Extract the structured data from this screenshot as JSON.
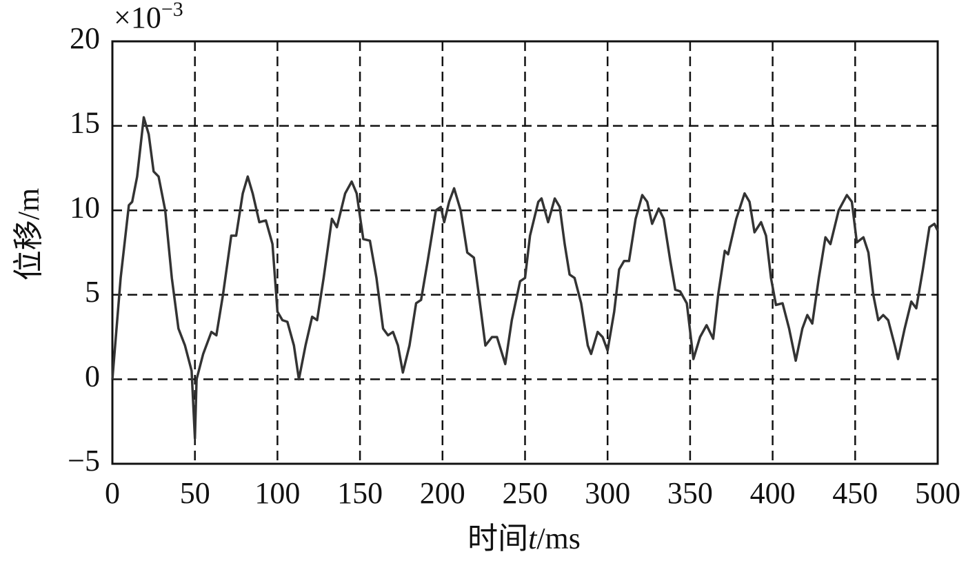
{
  "chart_data": {
    "type": "line",
    "multiplier": {
      "base": "×10",
      "exponent": "−3"
    },
    "xlabel": [
      "时间",
      "t",
      "/ms"
    ],
    "ylabel": "位移/m",
    "xlim": [
      0,
      500
    ],
    "xticks": [
      0,
      50,
      100,
      150,
      200,
      250,
      300,
      350,
      400,
      450,
      500
    ],
    "ylim": [
      -5,
      20
    ],
    "yticks": [
      {
        "value": -5,
        "label": "−5"
      },
      0,
      5,
      10,
      15,
      20
    ],
    "grid": true,
    "x": [
      0,
      5,
      10,
      12,
      15,
      19,
      22,
      25,
      28,
      32,
      36,
      40,
      44,
      48,
      50,
      51,
      55,
      60,
      63,
      67,
      72,
      75,
      79,
      82,
      85,
      89,
      93,
      97,
      100,
      103,
      106,
      110,
      113,
      117,
      121,
      124,
      128,
      133,
      136,
      141,
      145,
      148,
      152,
      156,
      160,
      164,
      167,
      170,
      173,
      176,
      180,
      184,
      187,
      191,
      196,
      199,
      201,
      204,
      207,
      211,
      215,
      219,
      222,
      226,
      230,
      233,
      238,
      242,
      247,
      250,
      253,
      258,
      260,
      264,
      268,
      271,
      274,
      277,
      280,
      284,
      288,
      290,
      294,
      297,
      300,
      304,
      307,
      310,
      313,
      317,
      321,
      324,
      327,
      331,
      334,
      338,
      341,
      344,
      348,
      352,
      356,
      360,
      364,
      367,
      371,
      373,
      378,
      383,
      386,
      389,
      393,
      396,
      399,
      402,
      406,
      410,
      414,
      418,
      421,
      424,
      428,
      432,
      435,
      440,
      445,
      448,
      451,
      455,
      458,
      461,
      464,
      467,
      470,
      474,
      476,
      480,
      484,
      487,
      491,
      495,
      498,
      500
    ],
    "series": [
      {
        "name": "位移",
        "color": "#333333",
        "values": [
          0,
          6,
          10.3,
          10.5,
          12,
          15.5,
          14.5,
          12.3,
          12,
          10,
          6,
          3,
          2,
          0.5,
          -3.5,
          0,
          1.5,
          2.8,
          2.6,
          5,
          8.5,
          8.5,
          11,
          12,
          11,
          9.3,
          9.4,
          8,
          4,
          3.5,
          3.4,
          2,
          0,
          2,
          3.7,
          3.5,
          6,
          9.5,
          9,
          11,
          11.7,
          11,
          8.3,
          8.2,
          6,
          3,
          2.6,
          2.8,
          2,
          0.4,
          2,
          4.5,
          4.7,
          7,
          10,
          10.2,
          9.3,
          10.5,
          11.3,
          10,
          7.5,
          7.2,
          5,
          2,
          2.5,
          2.5,
          0.9,
          3.5,
          5.8,
          6,
          8.5,
          10.5,
          10.7,
          9.3,
          10.7,
          10.2,
          8,
          6.2,
          6,
          4.5,
          2,
          1.5,
          2.8,
          2.5,
          1.7,
          4,
          6.5,
          7,
          7,
          9.5,
          10.9,
          10.5,
          9.2,
          10.1,
          9.5,
          7,
          5.3,
          5.2,
          4.5,
          1.2,
          2.5,
          3.2,
          2.4,
          5,
          7.6,
          7.4,
          9.5,
          11,
          10.5,
          8.7,
          9.3,
          8.5,
          6,
          4.4,
          4.5,
          3,
          1.1,
          3,
          3.8,
          3.3,
          6,
          8.4,
          8,
          10,
          10.9,
          10.5,
          8.1,
          8.4,
          7.5,
          5,
          3.5,
          3.8,
          3.5,
          2,
          1.2,
          3,
          4.6,
          4.2,
          6.5,
          9,
          9.2,
          8.8
        ]
      }
    ]
  }
}
